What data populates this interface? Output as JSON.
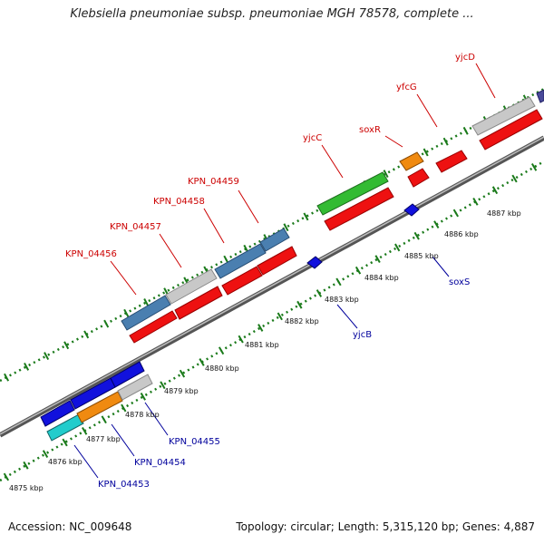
{
  "title": "Klebsiella pneumoniae subsp. pneumoniae MGH 78578, complete ...",
  "footer": {
    "accession": "Accession: NC_009648",
    "summary": "Topology: circular; Length: 5,315,120 bp; Genes: 4,887"
  },
  "colors": {
    "backbone": "#8a8a8a",
    "tick": "#1a7a1a",
    "forward_label": "#cc0000",
    "reverse_label": "#00009c",
    "gene_red": "#ee1111",
    "gene_blue": "#1111dd",
    "gene_steelblue": "#4a7fb0",
    "gene_gray": "#c8c8c8",
    "gene_green": "#33bb33",
    "gene_orange": "#f08a10",
    "gene_cyan": "#22cccc",
    "gene_navy": "#4a4a9a"
  },
  "scale_labels": [
    "4875 kbp",
    "4876 kbp",
    "4877 kbp",
    "4878 kbp",
    "4879 kbp",
    "4880 kbp",
    "4881 kbp",
    "4882 kbp",
    "4883 kbp",
    "4884 kbp",
    "4885 kbp",
    "4886 kbp",
    "4887 kbp"
  ],
  "forward_genes": [
    {
      "label": "KPN_04456",
      "color": "red"
    },
    {
      "label": "KPN_04457",
      "color": "red"
    },
    {
      "label": "KPN_04458",
      "color": "red"
    },
    {
      "label": "KPN_04459",
      "color": "red"
    },
    {
      "label": "yjcC",
      "color": "red"
    },
    {
      "label": "soxR",
      "color": "red"
    },
    {
      "label": "yfcG",
      "color": "red"
    },
    {
      "label": "yjcD",
      "color": "red"
    }
  ],
  "reverse_genes": [
    {
      "label": "KPN_04453",
      "color": "blue"
    },
    {
      "label": "KPN_04454",
      "color": "blue"
    },
    {
      "label": "KPN_04455",
      "color": "blue"
    },
    {
      "label": "yjcB",
      "color": "blue"
    },
    {
      "label": "soxS",
      "color": "blue"
    }
  ]
}
